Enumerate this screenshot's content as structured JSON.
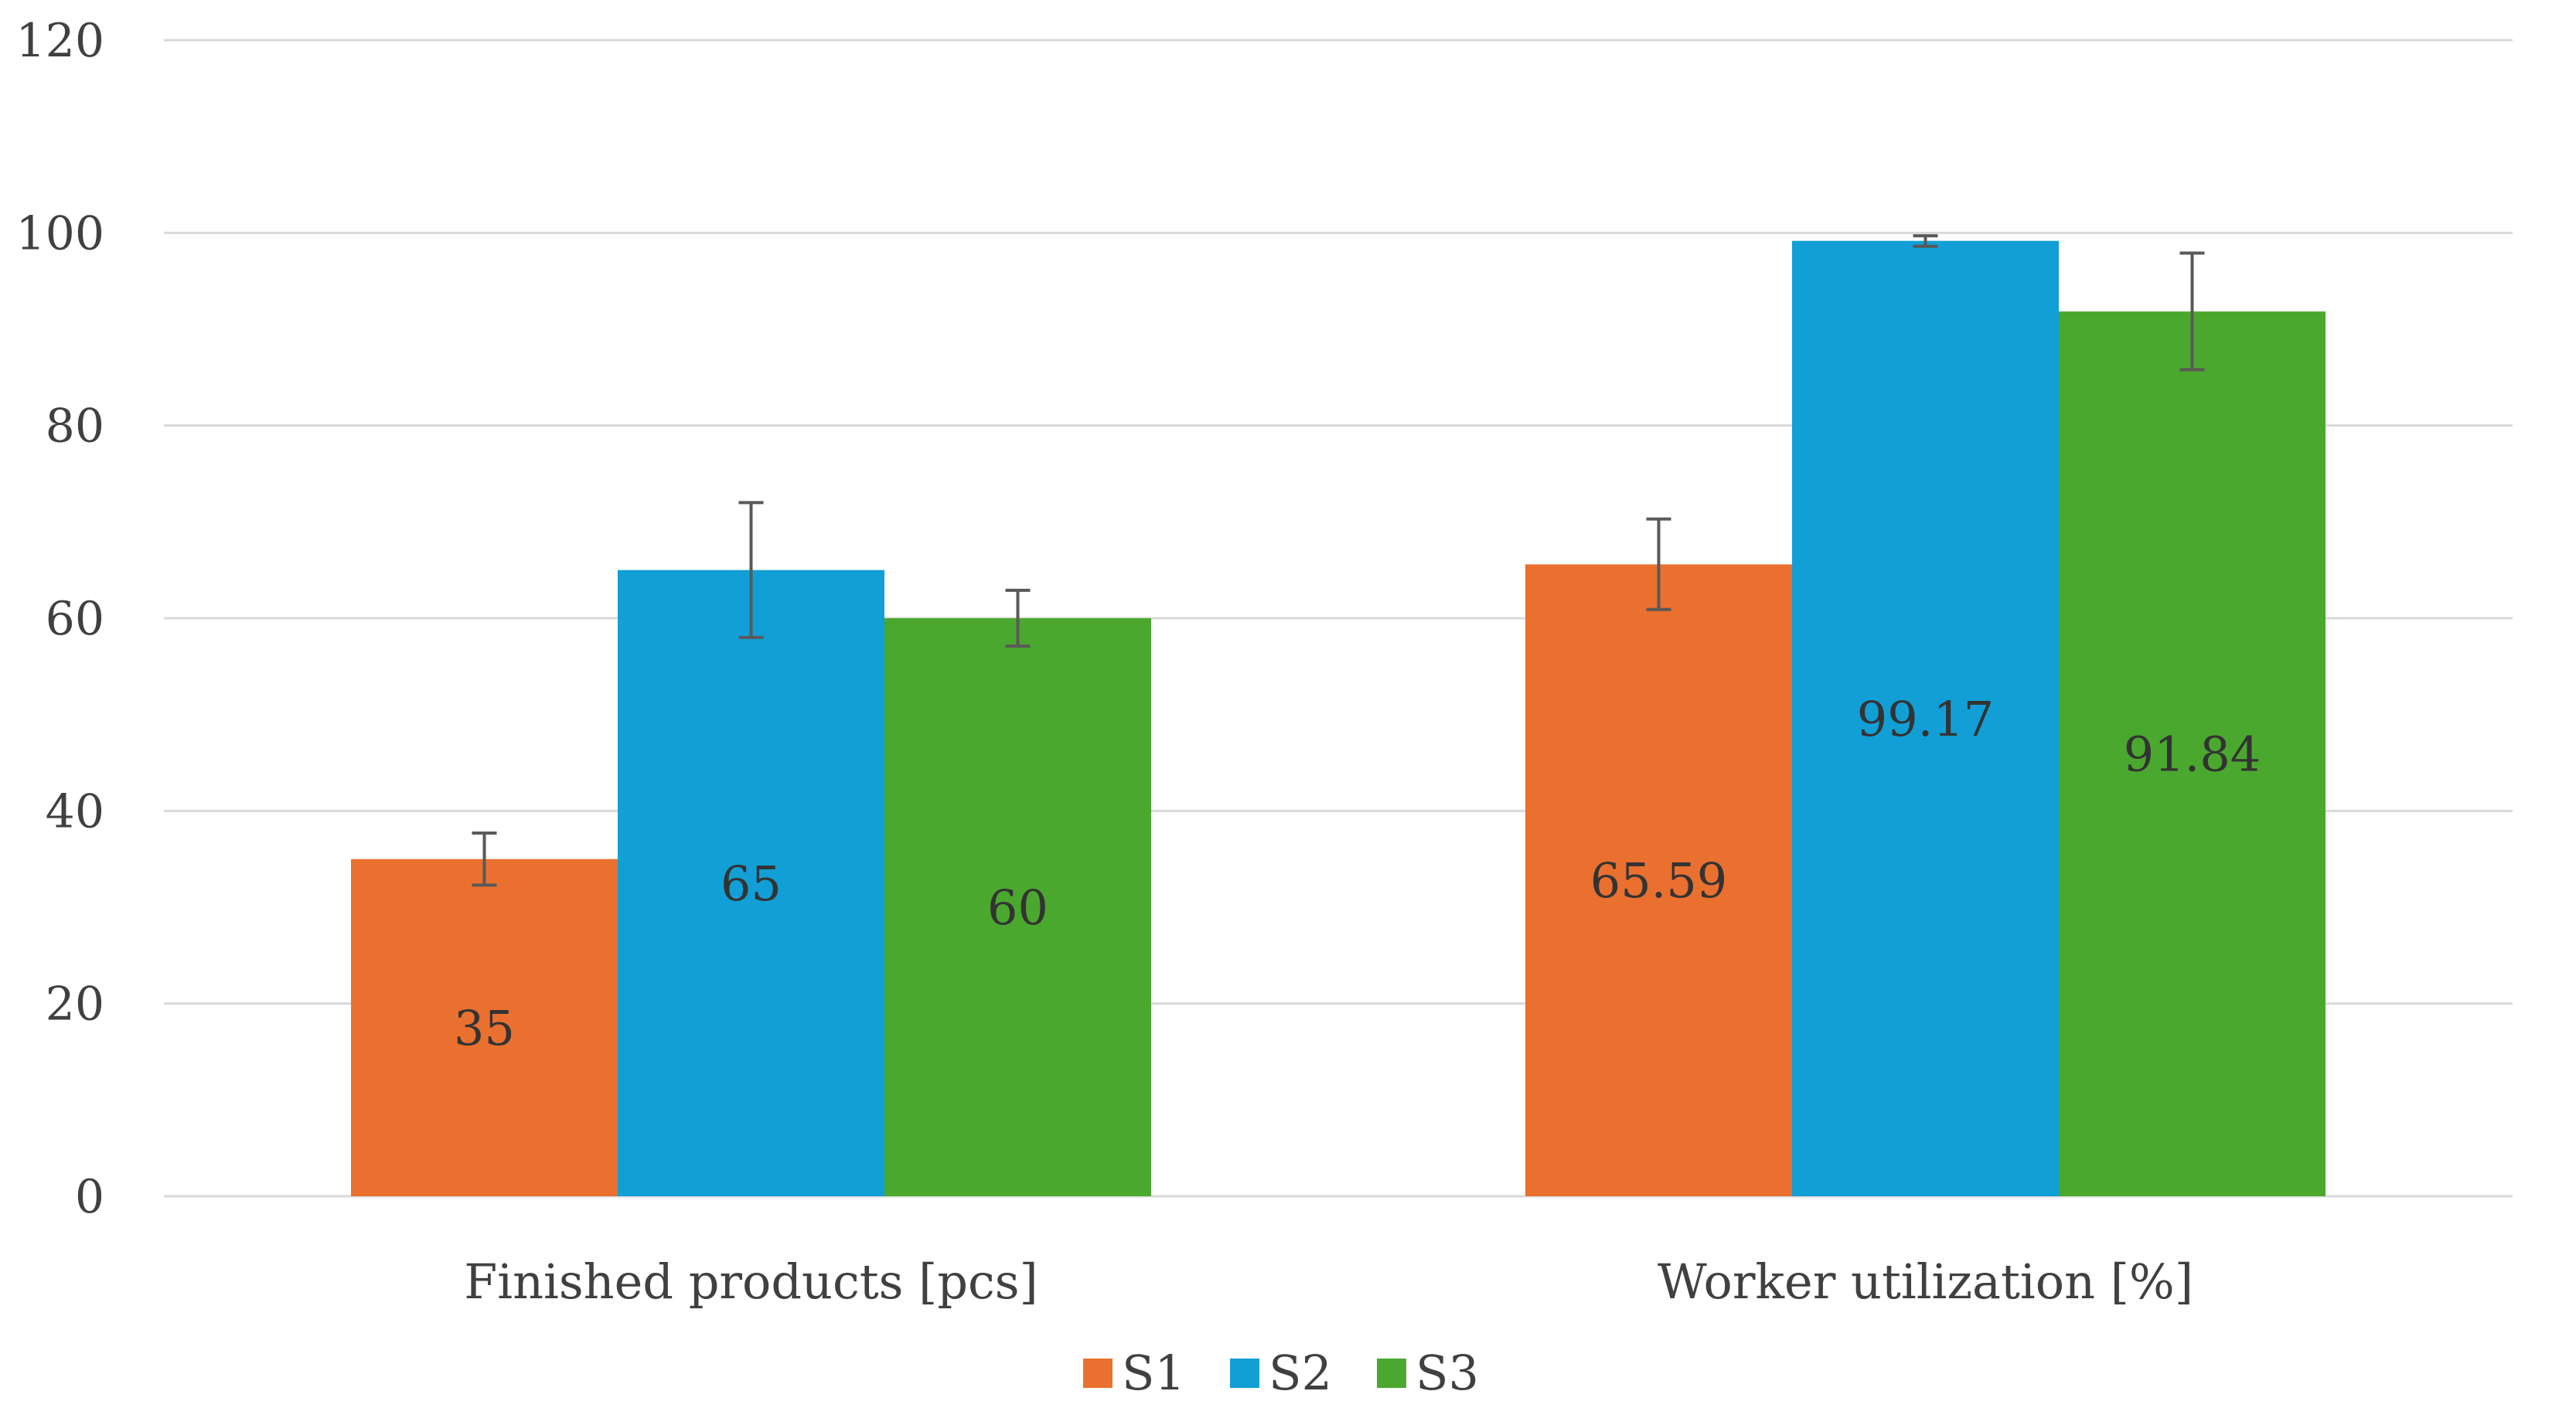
{
  "chart_data": {
    "type": "bar",
    "title": "",
    "xlabel": "",
    "ylabel": "",
    "ylim": [
      0,
      120
    ],
    "yticks": [
      0,
      20,
      40,
      60,
      80,
      100,
      120
    ],
    "grid": true,
    "legend": "bottom-center",
    "categories": [
      "Finished products [pcs]",
      "Worker utilization [%]"
    ],
    "series": [
      {
        "name": "S1",
        "color": "#ea7030",
        "values": [
          35,
          65.59
        ],
        "labels": [
          "35",
          "65.59"
        ],
        "error_low": [
          32.3,
          60.9
        ],
        "error_high": [
          37.7,
          70.3
        ]
      },
      {
        "name": "S2",
        "color": "#119fd6",
        "values": [
          65,
          99.17
        ],
        "labels": [
          "65",
          "99.17"
        ],
        "error_low": [
          58,
          98.6
        ],
        "error_high": [
          72,
          99.7
        ]
      },
      {
        "name": "S3",
        "color": "#4ba82f",
        "values": [
          60,
          91.84
        ],
        "labels": [
          "60",
          "91.84"
        ],
        "error_low": [
          57.1,
          85.8
        ],
        "error_high": [
          62.9,
          97.9
        ]
      }
    ]
  }
}
